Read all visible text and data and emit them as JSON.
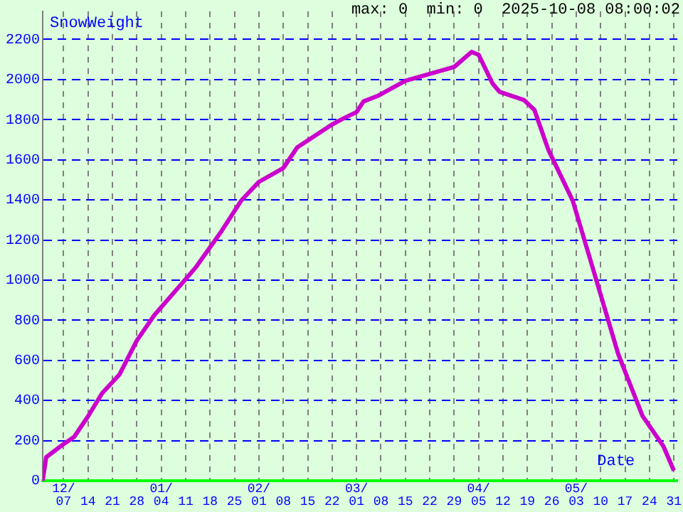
{
  "chart_data": {
    "type": "line",
    "ylabel": "SnowWeight",
    "xlabel": "Date",
    "annotations": [
      "max: 0  min: 0  2025-10-08 08:00:02"
    ],
    "x": [
      "2024-12-01",
      "2024-12-02",
      "2024-12-07",
      "2024-12-10",
      "2024-12-14",
      "2024-12-18",
      "2024-12-23",
      "2024-12-28",
      "2025-01-02",
      "2025-01-10",
      "2025-01-14",
      "2025-01-21",
      "2025-01-27",
      "2025-02-01",
      "2025-02-08",
      "2025-02-12",
      "2025-02-22",
      "2025-02-25",
      "2025-03-01",
      "2025-03-03",
      "2025-03-07",
      "2025-03-15",
      "2025-03-29",
      "2025-04-03",
      "2025-04-05",
      "2025-04-09",
      "2025-04-11",
      "2025-04-18",
      "2025-04-21",
      "2025-04-25",
      "2025-05-02",
      "2025-05-08",
      "2025-05-15",
      "2025-05-22",
      "2025-05-28",
      "2025-05-31"
    ],
    "series": [
      {
        "color": "#cc00cc",
        "values": [
          0,
          117,
          183,
          218,
          321,
          435,
          529,
          699,
          825,
          985,
          1066,
          1237,
          1398,
          1490,
          1559,
          1662,
          1776,
          1804,
          1838,
          1891,
          1918,
          1994,
          2063,
          2138,
          2124,
          1980,
          1939,
          1898,
          1849,
          1650,
          1396,
          1045,
          633,
          323,
          172,
          50
        ]
      }
    ],
    "xlim": [
      "2024-12-01",
      "2025-06-01"
    ],
    "xticks": [
      {
        "value": "2024-12-07",
        "label": "12/07"
      },
      {
        "value": "2024-12-14",
        "label": "14"
      },
      {
        "value": "2024-12-21",
        "label": "21"
      },
      {
        "value": "2024-12-28",
        "label": "28"
      },
      {
        "value": "2025-01-04",
        "label": "01/04"
      },
      {
        "value": "2025-01-11",
        "label": "11"
      },
      {
        "value": "2025-01-18",
        "label": "18"
      },
      {
        "value": "2025-01-25",
        "label": "25"
      },
      {
        "value": "2025-02-01",
        "label": "02/01"
      },
      {
        "value": "2025-02-08",
        "label": "08"
      },
      {
        "value": "2025-02-15",
        "label": "15"
      },
      {
        "value": "2025-02-22",
        "label": "22"
      },
      {
        "value": "2025-03-01",
        "label": "03/01"
      },
      {
        "value": "2025-03-08",
        "label": "08"
      },
      {
        "value": "2025-03-15",
        "label": "15"
      },
      {
        "value": "2025-03-22",
        "label": "22"
      },
      {
        "value": "2025-03-29",
        "label": "29"
      },
      {
        "value": "2025-04-05",
        "label": "04/05"
      },
      {
        "value": "2025-04-12",
        "label": "12"
      },
      {
        "value": "2025-04-19",
        "label": "19"
      },
      {
        "value": "2025-04-26",
        "label": "26"
      },
      {
        "value": "2025-05-03",
        "label": "05/03"
      },
      {
        "value": "2025-05-10",
        "label": "10"
      },
      {
        "value": "2025-05-17",
        "label": "17"
      },
      {
        "value": "2025-05-24",
        "label": "24"
      },
      {
        "value": "2025-05-31",
        "label": "31"
      }
    ],
    "ylim": [
      0,
      2340
    ],
    "yticks": [
      0,
      200,
      400,
      600,
      800,
      1000,
      1200,
      1400,
      1600,
      1800,
      2000,
      2200
    ],
    "grid": true,
    "legend": false,
    "marker": "none",
    "line_style": "solid"
  }
}
